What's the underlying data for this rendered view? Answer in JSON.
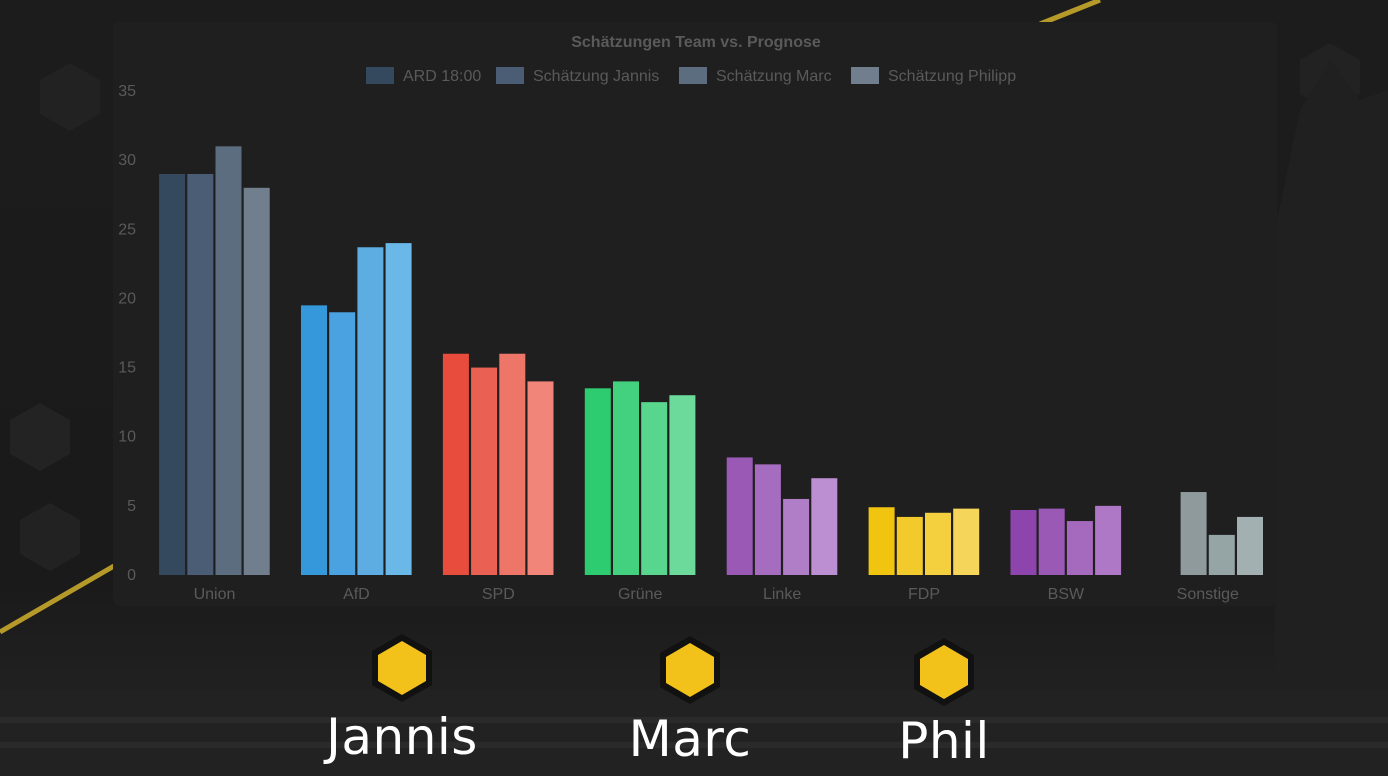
{
  "chart_data": {
    "type": "bar",
    "title": "Schätzungen Team vs. Prognose",
    "categories": [
      "Union",
      "AfD",
      "SPD",
      "Grüne",
      "Linke",
      "FDP",
      "BSW",
      "Sonstige"
    ],
    "series": [
      {
        "name": "ARD 18:00",
        "values": [
          29,
          19.5,
          16,
          13.5,
          8.5,
          4.9,
          4.7,
          null
        ]
      },
      {
        "name": "Schätzung Jannis",
        "values": [
          29,
          19,
          15,
          14,
          8,
          4.2,
          4.8,
          6
        ]
      },
      {
        "name": "Schätzung Marc",
        "values": [
          31,
          23.7,
          16,
          12.5,
          5.5,
          4.5,
          3.9,
          2.9
        ]
      },
      {
        "name": "Schätzung Philipp",
        "values": [
          28,
          24,
          14,
          13,
          7,
          4.8,
          5,
          4.2
        ]
      }
    ],
    "category_colors": [
      [
        "#34495e",
        "#4a5d74",
        "#5d6d80",
        "#717e8d"
      ],
      [
        "#3498db",
        "#4aa3e0",
        "#5dade2",
        "#6ab8e8"
      ],
      [
        "#e74c3c",
        "#ea6153",
        "#ed7669",
        "#f1857a"
      ],
      [
        "#2ecc71",
        "#43d07f",
        "#58d68d",
        "#6bda9a"
      ],
      [
        "#9b59b6",
        "#a66cc0",
        "#b07ec7",
        "#bc8fd2"
      ],
      [
        "#f1c40f",
        "#f2ca2b",
        "#f4d03f",
        "#f6d65a"
      ],
      [
        "#8e44ad",
        "#9b59b6",
        "#a569bd",
        "#af78c6"
      ],
      [
        "#7f8c8d",
        "#8e9a9b",
        "#95a5a6",
        "#a3b0b1"
      ]
    ],
    "legend_colors": [
      "#34495e",
      "#4a5d74",
      "#5d6d80",
      "#717e8d"
    ],
    "legend_position": "top",
    "ylim": [
      0,
      35
    ],
    "yticks": [
      0,
      5,
      10,
      15,
      20,
      25,
      30,
      35
    ],
    "grid": false
  },
  "team": {
    "members": [
      {
        "name": "Jannis",
        "badge_color": "#f2c21b"
      },
      {
        "name": "Marc",
        "badge_color": "#f2c21b"
      },
      {
        "name": "Phil",
        "badge_color": "#f2c21b"
      }
    ]
  }
}
